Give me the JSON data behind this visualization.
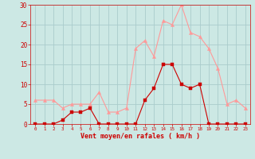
{
  "hours": [
    0,
    1,
    2,
    3,
    4,
    5,
    6,
    7,
    8,
    9,
    10,
    11,
    12,
    13,
    14,
    15,
    16,
    17,
    18,
    19,
    20,
    21,
    22,
    23
  ],
  "wind_avg": [
    0,
    0,
    0,
    1,
    3,
    3,
    4,
    0,
    0,
    0,
    0,
    0,
    6,
    9,
    15,
    15,
    10,
    9,
    10,
    0,
    0,
    0,
    0,
    0
  ],
  "wind_gust": [
    6,
    6,
    6,
    4,
    5,
    5,
    5,
    8,
    3,
    3,
    4,
    19,
    21,
    17,
    26,
    25,
    30,
    23,
    22,
    19,
    14,
    5,
    6,
    4
  ],
  "bg_color": "#cce8e4",
  "grid_color": "#aacccc",
  "avg_color": "#cc0000",
  "gust_color": "#ff9999",
  "xlabel": "Vent moyen/en rafales ( km/h )",
  "xlabel_color": "#cc0000",
  "tick_color": "#cc0000",
  "ylim": [
    0,
    30
  ],
  "yticks": [
    0,
    5,
    10,
    15,
    20,
    25,
    30
  ],
  "xlim": [
    -0.5,
    23.5
  ]
}
